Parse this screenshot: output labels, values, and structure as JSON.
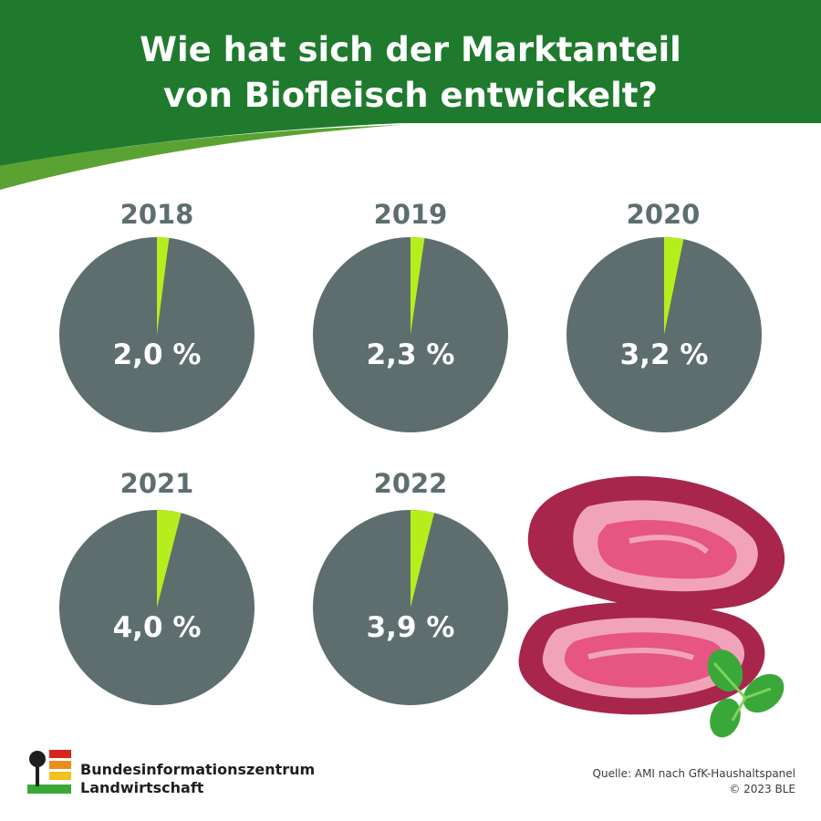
{
  "header": {
    "title_line1": "Wie hat sich der Marktanteil",
    "title_line2": "von Biofleisch entwickelt?"
  },
  "colors": {
    "brand_green": "#1f7a2e",
    "accent_green": "#b6ee1d",
    "pie_gray": "#5e6e6e",
    "meat_red": "#a8264b",
    "meat_pink": "#e65583",
    "basil_green": "#3aa838"
  },
  "chart_data": {
    "type": "pie",
    "title": "Wie hat sich der Marktanteil von Biofleisch entwickelt?",
    "unit": "%",
    "categories": [
      "2018",
      "2019",
      "2020",
      "2021",
      "2022"
    ],
    "values": [
      2.0,
      2.3,
      3.2,
      4.0,
      3.9
    ],
    "labels": [
      "2,0 %",
      "2,3 %",
      "3,2 %",
      "4,0 %",
      "3,9 %"
    ]
  },
  "footer": {
    "org_line1": "Bundesinformationszentrum",
    "org_line2": "Landwirtschaft",
    "source_line1": "Quelle: AMI nach GfK-Haushaltspanel",
    "source_line2": "© 2023 BLE"
  },
  "icons": [
    "ble-logo-icon",
    "meat-steak-illustration",
    "basil-leaf-icon"
  ]
}
